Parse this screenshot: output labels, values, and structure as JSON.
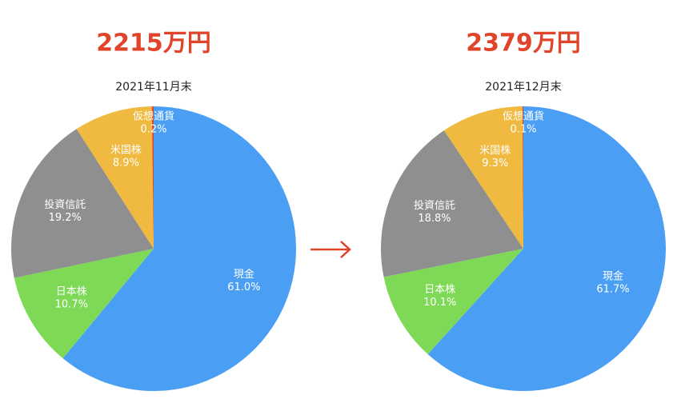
{
  "chart_data": [
    {
      "type": "pie",
      "headline": "2215万円",
      "title": "2021年11月末",
      "categories": [
        "現金",
        "日本株",
        "投資信託",
        "米国株",
        "仮想通貨"
      ],
      "values": [
        61.0,
        10.7,
        19.2,
        8.9,
        0.2
      ],
      "value_labels": [
        "61.0%",
        "10.7%",
        "19.2%",
        "8.9%",
        "0.2%"
      ],
      "colors": [
        "#4a9ff5",
        "#7ed957",
        "#8f8f8f",
        "#f0b93f",
        "#e0442a"
      ]
    },
    {
      "type": "pie",
      "headline": "2379万円",
      "title": "2021年12月末",
      "categories": [
        "現金",
        "日本株",
        "投資信託",
        "米国株",
        "仮想通貨"
      ],
      "values": [
        61.7,
        10.1,
        18.8,
        9.3,
        0.1
      ],
      "value_labels": [
        "61.7%",
        "10.1%",
        "18.8%",
        "9.3%",
        "0.1%"
      ],
      "colors": [
        "#4a9ff5",
        "#7ed957",
        "#8f8f8f",
        "#f0b93f",
        "#e0442a"
      ]
    }
  ]
}
